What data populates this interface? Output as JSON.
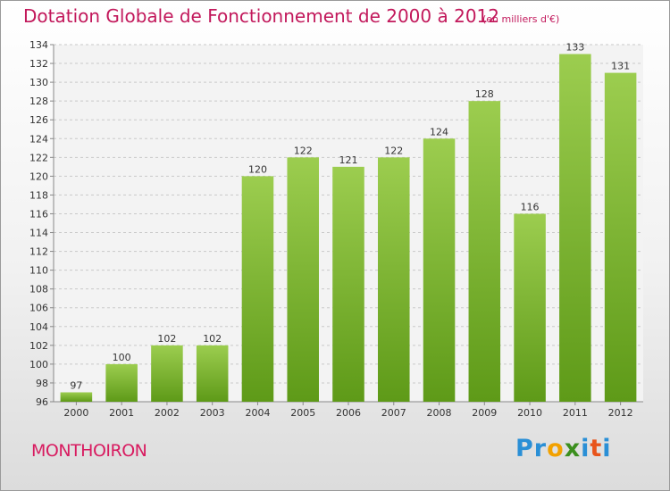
{
  "chart_data": {
    "type": "bar",
    "title": "Dotation Globale de Fonctionnement de 2000 à 2012",
    "subtitle": "(en milliers d'€)",
    "categories": [
      "2000",
      "2001",
      "2002",
      "2003",
      "2004",
      "2005",
      "2006",
      "2007",
      "2008",
      "2009",
      "2010",
      "2011",
      "2012"
    ],
    "values": [
      97,
      100,
      102,
      102,
      120,
      122,
      121,
      122,
      124,
      128,
      116,
      133,
      131
    ],
    "ylim": [
      96,
      134
    ],
    "yticks": [
      96,
      98,
      100,
      102,
      104,
      106,
      108,
      110,
      112,
      114,
      116,
      118,
      120,
      122,
      124,
      126,
      128,
      130,
      132,
      134
    ],
    "xlabel": "",
    "ylabel": "",
    "grid": true,
    "data_labels": true,
    "bar_color_top": "#9ccd4f",
    "bar_color_bottom": "#5e9a18"
  },
  "commune": "MONTHOIRON",
  "logo": {
    "text": "Proxiti",
    "letters": [
      {
        "ch": "P",
        "color": "#2a8fd6"
      },
      {
        "ch": "r",
        "color": "#2a8fd6"
      },
      {
        "ch": "o",
        "color": "#f2a100"
      },
      {
        "ch": "x",
        "color": "#3c8f1e"
      },
      {
        "ch": "i",
        "color": "#2a8fd6"
      },
      {
        "ch": "t",
        "color": "#e8541b"
      },
      {
        "ch": "i",
        "color": "#2a8fd6"
      }
    ]
  }
}
